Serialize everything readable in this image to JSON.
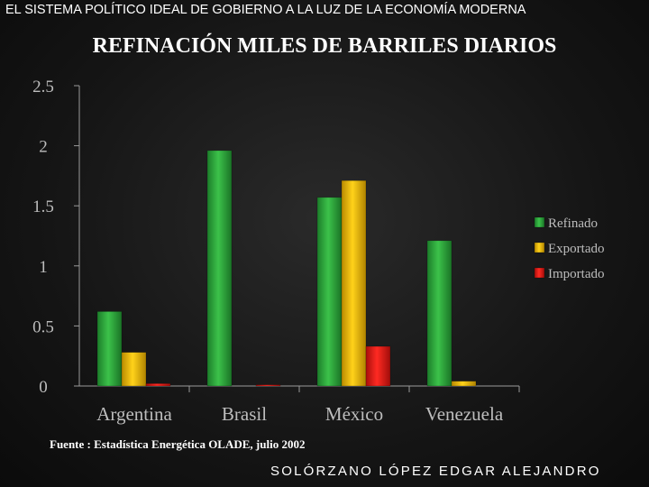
{
  "header": {
    "title": "EL SISTEMA POLÍTICO IDEAL DE GOBIERNO A LA LUZ DE LA ECONOMÍA MODERNA"
  },
  "chart_data": {
    "type": "bar",
    "title": "REFINACIÓN MILES DE BARRILES DIARIOS",
    "categories": [
      "Argentina",
      "Brasil",
      "México",
      "Venezuela"
    ],
    "series": [
      {
        "name": "Refinado",
        "color": "#2eaa3c",
        "values": [
          0.62,
          1.96,
          1.57,
          1.21
        ]
      },
      {
        "name": "Exportado",
        "color": "#e6b800",
        "values": [
          0.28,
          0,
          1.71,
          0.04
        ]
      },
      {
        "name": "Importado",
        "color": "#e41b17",
        "values": [
          0.02,
          0.01,
          0.33,
          0
        ]
      }
    ],
    "yticks": [
      "0",
      "0.5",
      "1",
      "1.5",
      "2",
      "2.5"
    ],
    "ylim": [
      0,
      2.5
    ],
    "legend_position": "right"
  },
  "footer": {
    "source": "Fuente : Estadística Energética OLADE, julio 2002",
    "author": "SOLÓRZANO LÓPEZ EDGAR ALEJANDRO"
  }
}
